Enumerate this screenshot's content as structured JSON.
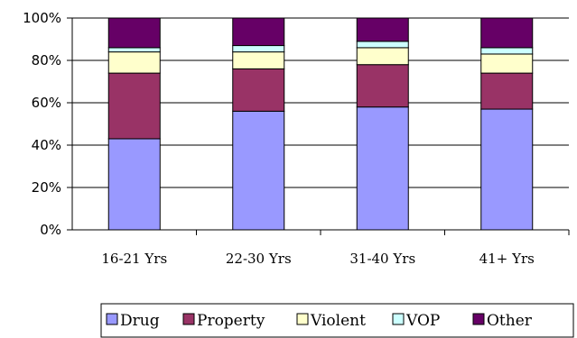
{
  "chart_data": {
    "type": "bar",
    "stacked": true,
    "categories": [
      "16-21 Yrs",
      "22-30 Yrs",
      "31-40 Yrs",
      "41+ Yrs"
    ],
    "series": [
      {
        "name": "Drug",
        "values": [
          43,
          56,
          58,
          57
        ],
        "color": "#9999ff"
      },
      {
        "name": "Property",
        "values": [
          31,
          20,
          20,
          17
        ],
        "color": "#993366"
      },
      {
        "name": "Violent",
        "values": [
          10,
          8,
          8,
          9
        ],
        "color": "#ffffcc"
      },
      {
        "name": "VOP",
        "values": [
          2,
          3,
          3,
          3
        ],
        "color": "#ccffff"
      },
      {
        "name": "Other",
        "values": [
          14,
          13,
          11,
          14
        ],
        "color": "#660066"
      }
    ],
    "ylim": [
      0,
      100
    ],
    "yticks": [
      "0%",
      "20%",
      "40%",
      "60%",
      "80%",
      "100%"
    ],
    "grid": true,
    "legend_position": "bottom"
  }
}
